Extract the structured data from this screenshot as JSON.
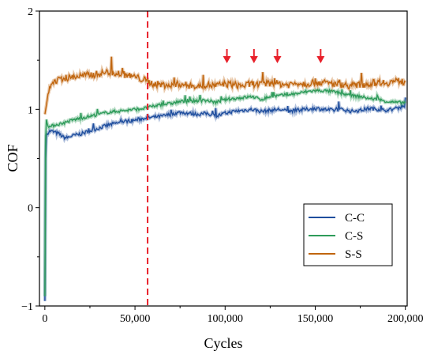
{
  "chart_data": {
    "type": "line",
    "title": "",
    "xlabel": "Cycles",
    "ylabel": "COF",
    "xlim": [
      -3000,
      201000
    ],
    "ylim": [
      -1,
      2
    ],
    "x_ticks": [
      0,
      50000,
      100000,
      150000,
      200000
    ],
    "x_tick_labels": [
      "0",
      "50,000",
      "100,000",
      "150,000",
      "200,000"
    ],
    "y_ticks": [
      -1,
      0,
      1,
      2
    ],
    "y_tick_labels": [
      "−1",
      "0",
      "1",
      "2"
    ],
    "grid": false,
    "legend_position": "lower-right",
    "series": [
      {
        "name": "C-C",
        "color": "#1f4e9e",
        "x": [
          0,
          500,
          1500,
          3000,
          5000,
          8000,
          10000,
          12000,
          15000,
          20000,
          25000,
          30000,
          35000,
          40000,
          45000,
          50000,
          55000,
          60000,
          65000,
          70000,
          75000,
          80000,
          85000,
          90000,
          95000,
          100000,
          105000,
          110000,
          115000,
          120000,
          125000,
          130000,
          135000,
          140000,
          145000,
          150000,
          155000,
          160000,
          165000,
          170000,
          175000,
          180000,
          185000,
          190000,
          195000,
          200000
        ],
        "values": [
          -0.95,
          0.72,
          0.76,
          0.78,
          0.77,
          0.75,
          0.72,
          0.71,
          0.73,
          0.75,
          0.78,
          0.81,
          0.84,
          0.86,
          0.88,
          0.89,
          0.91,
          0.92,
          0.93,
          0.95,
          0.97,
          0.96,
          0.95,
          0.96,
          0.93,
          0.96,
          0.98,
          0.99,
          1.0,
          0.98,
          0.99,
          1.0,
          0.98,
          0.99,
          1.0,
          1.01,
          1.0,
          0.99,
          1.0,
          0.98,
          0.99,
          1.01,
          1.0,
          0.99,
          1.01,
          1.04
        ]
      },
      {
        "name": "C-S",
        "color": "#2e9b5a",
        "x": [
          0,
          500,
          1500,
          3000,
          5000,
          8000,
          10000,
          12000,
          15000,
          20000,
          25000,
          30000,
          35000,
          40000,
          45000,
          50000,
          55000,
          60000,
          65000,
          70000,
          75000,
          80000,
          85000,
          90000,
          95000,
          100000,
          105000,
          110000,
          115000,
          120000,
          125000,
          130000,
          135000,
          140000,
          145000,
          150000,
          155000,
          160000,
          165000,
          170000,
          175000,
          180000,
          185000,
          190000,
          195000,
          200000
        ],
        "values": [
          -0.9,
          0.93,
          0.84,
          0.82,
          0.84,
          0.85,
          0.86,
          0.87,
          0.89,
          0.91,
          0.93,
          0.95,
          0.97,
          0.98,
          0.99,
          1.0,
          1.01,
          1.03,
          1.05,
          1.06,
          1.08,
          1.08,
          1.09,
          1.09,
          1.07,
          1.1,
          1.11,
          1.12,
          1.13,
          1.1,
          1.13,
          1.14,
          1.15,
          1.16,
          1.18,
          1.19,
          1.19,
          1.18,
          1.16,
          1.14,
          1.13,
          1.11,
          1.1,
          1.08,
          1.07,
          1.07
        ]
      },
      {
        "name": "S-S",
        "color": "#c0650e",
        "x": [
          0,
          500,
          1500,
          3000,
          5000,
          8000,
          10000,
          12000,
          15000,
          20000,
          25000,
          30000,
          35000,
          40000,
          45000,
          50000,
          55000,
          60000,
          65000,
          70000,
          75000,
          80000,
          85000,
          90000,
          95000,
          100000,
          105000,
          110000,
          115000,
          120000,
          125000,
          130000,
          135000,
          140000,
          145000,
          150000,
          155000,
          160000,
          165000,
          170000,
          175000,
          180000,
          185000,
          190000,
          195000,
          200000
        ],
        "values": [
          0.95,
          1.0,
          1.12,
          1.22,
          1.28,
          1.3,
          1.32,
          1.31,
          1.33,
          1.34,
          1.35,
          1.36,
          1.38,
          1.37,
          1.35,
          1.33,
          1.3,
          1.26,
          1.25,
          1.24,
          1.26,
          1.24,
          1.23,
          1.25,
          1.24,
          1.26,
          1.25,
          1.24,
          1.26,
          1.25,
          1.27,
          1.26,
          1.25,
          1.27,
          1.26,
          1.28,
          1.27,
          1.26,
          1.25,
          1.24,
          1.25,
          1.26,
          1.28,
          1.27,
          1.29,
          1.28
        ]
      }
    ],
    "vertical_line": {
      "x": 57000,
      "color": "#e8212b",
      "style": "dashed"
    },
    "arrows": {
      "color": "#e8212b",
      "x": [
        101000,
        116000,
        129000,
        153000
      ]
    }
  }
}
